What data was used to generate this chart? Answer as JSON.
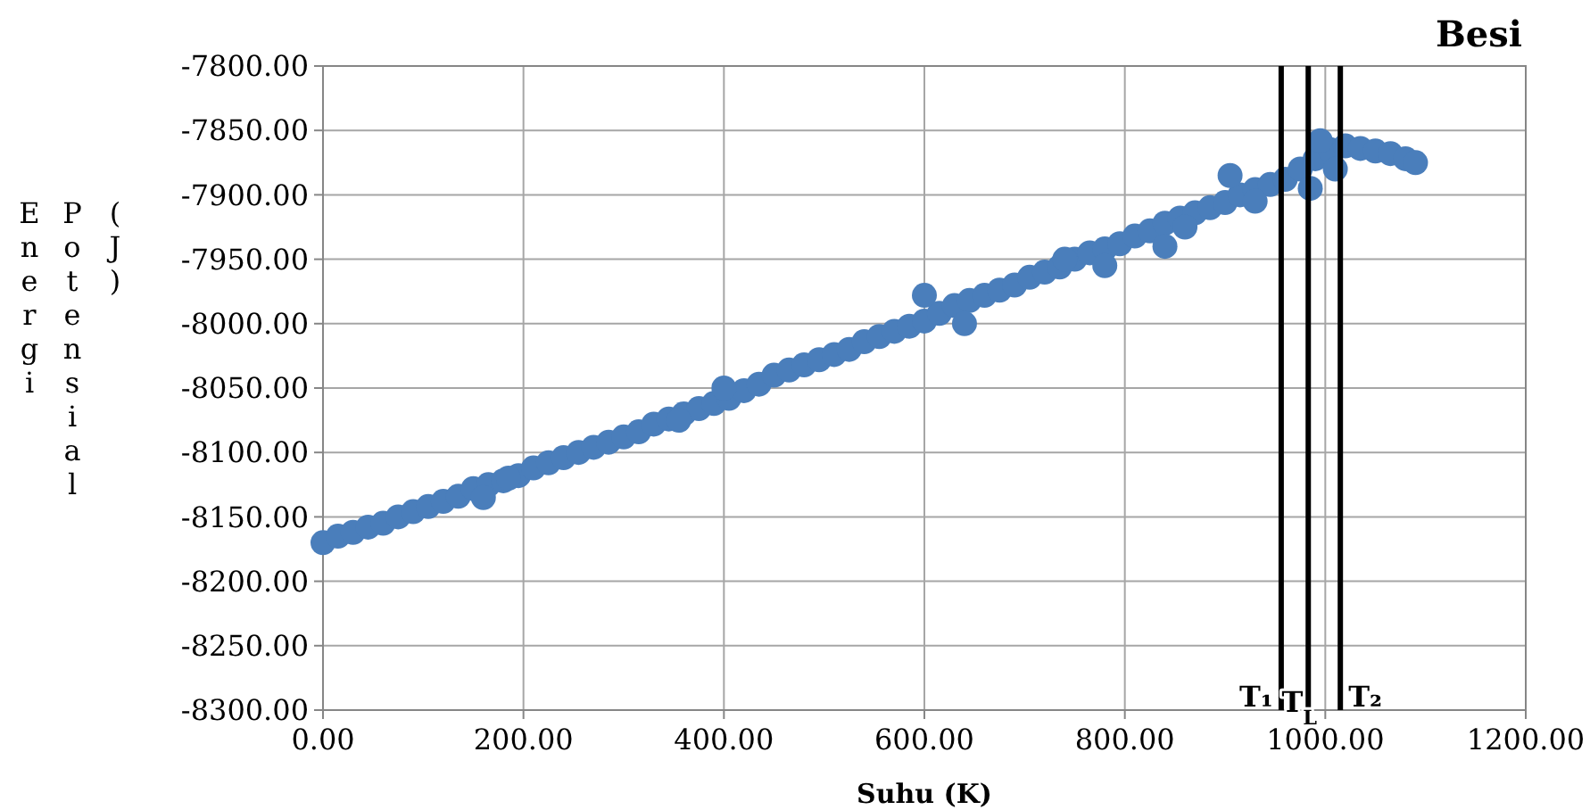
{
  "chart_data": {
    "type": "scatter",
    "title": "Besi",
    "xlabel": "Suhu (K)",
    "ylabel": "Energi Potensial (J)",
    "xlim": [
      0,
      1200
    ],
    "ylim": [
      -8300,
      -7800
    ],
    "xticks": [
      {
        "value": 0,
        "label": "0.00"
      },
      {
        "value": 200,
        "label": "200.00"
      },
      {
        "value": 400,
        "label": "400.00"
      },
      {
        "value": 600,
        "label": "600.00"
      },
      {
        "value": 800,
        "label": "800.00"
      },
      {
        "value": 1000,
        "label": "1000.00"
      },
      {
        "value": 1200,
        "label": "1200.00"
      }
    ],
    "yticks": [
      {
        "value": -8300,
        "label": "-8300.00"
      },
      {
        "value": -8250,
        "label": "-8250.00"
      },
      {
        "value": -8200,
        "label": "-8200.00"
      },
      {
        "value": -8150,
        "label": "-8150.00"
      },
      {
        "value": -8100,
        "label": "-8100.00"
      },
      {
        "value": -8050,
        "label": "-8050.00"
      },
      {
        "value": -8000,
        "label": "-8000.00"
      },
      {
        "value": -7950,
        "label": "-7950.00"
      },
      {
        "value": -7900,
        "label": "-7900.00"
      },
      {
        "value": -7850,
        "label": "-7850.00"
      },
      {
        "value": -7800,
        "label": "-7800.00"
      }
    ],
    "grid": true,
    "marker": "circle",
    "series": [
      {
        "color": "#4a7ebb",
        "x": [
          0,
          15,
          30,
          45,
          60,
          75,
          90,
          105,
          120,
          135,
          150,
          165,
          180,
          195,
          210,
          225,
          240,
          255,
          270,
          285,
          300,
          315,
          330,
          345,
          360,
          375,
          390,
          405,
          420,
          435,
          450,
          465,
          480,
          495,
          510,
          525,
          540,
          555,
          570,
          585,
          600,
          615,
          630,
          645,
          660,
          675,
          690,
          705,
          720,
          735,
          750,
          765,
          780,
          795,
          810,
          825,
          840,
          855,
          870,
          885,
          900,
          915,
          930,
          945,
          960,
          975,
          990,
          1005,
          1020,
          1035,
          1050,
          1065,
          1080,
          1090,
          160,
          185,
          355,
          400,
          600,
          640,
          740,
          780,
          840,
          860,
          905,
          930,
          985,
          995,
          1010
        ],
        "values": [
          -8170,
          -8165,
          -8162,
          -8158,
          -8155,
          -8150,
          -8146,
          -8142,
          -8138,
          -8134,
          -8128,
          -8125,
          -8122,
          -8118,
          -8112,
          -8108,
          -8104,
          -8100,
          -8096,
          -8092,
          -8088,
          -8084,
          -8078,
          -8074,
          -8070,
          -8066,
          -8062,
          -8058,
          -8052,
          -8047,
          -8040,
          -8036,
          -8032,
          -8028,
          -8024,
          -8020,
          -8014,
          -8010,
          -8006,
          -8002,
          -7998,
          -7992,
          -7986,
          -7982,
          -7978,
          -7974,
          -7970,
          -7964,
          -7960,
          -7956,
          -7950,
          -7945,
          -7942,
          -7938,
          -7932,
          -7928,
          -7922,
          -7918,
          -7914,
          -7910,
          -7906,
          -7900,
          -7896,
          -7892,
          -7888,
          -7880,
          -7872,
          -7865,
          -7862,
          -7864,
          -7866,
          -7868,
          -7872,
          -7875,
          -8135,
          -8120,
          -8075,
          -8050,
          -7978,
          -8000,
          -7950,
          -7955,
          -7940,
          -7925,
          -7885,
          -7905,
          -7895,
          -7858,
          -7880
        ]
      }
    ],
    "ref_lines": [
      {
        "axis": "x",
        "value": 956,
        "label": "T₁",
        "color": "#000000"
      },
      {
        "axis": "x",
        "value": 983,
        "label": "T$_{L}$",
        "color": "#000000"
      },
      {
        "axis": "x",
        "value": 1015,
        "label": "T₂",
        "color": "#000000"
      }
    ]
  }
}
